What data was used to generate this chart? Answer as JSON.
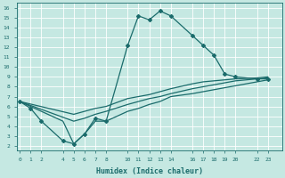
{
  "xlabel": "Humidex (Indice chaleur)",
  "ylabel": "",
  "bg_color": "#c5e8e2",
  "grid_color": "#ffffff",
  "line_color": "#1a6b6b",
  "xticks": [
    0,
    1,
    2,
    4,
    5,
    6,
    7,
    8,
    10,
    11,
    12,
    13,
    14,
    16,
    17,
    18,
    19,
    20,
    22,
    23
  ],
  "yticks": [
    2,
    3,
    4,
    5,
    6,
    7,
    8,
    9,
    10,
    11,
    12,
    13,
    14,
    15,
    16
  ],
  "xlim": [
    -0.3,
    24.3
  ],
  "ylim": [
    1.5,
    16.5
  ],
  "line1_x": [
    0,
    1,
    2,
    4,
    5,
    6,
    7,
    8,
    10,
    11,
    12,
    13,
    14,
    16,
    17,
    18,
    19,
    20,
    22,
    23
  ],
  "line1_y": [
    6.5,
    5.8,
    4.5,
    2.5,
    2.2,
    3.2,
    4.8,
    4.5,
    12.2,
    15.2,
    14.8,
    15.7,
    15.2,
    13.2,
    12.2,
    11.2,
    9.3,
    9.0,
    8.8,
    8.8
  ],
  "line2_x": [
    0,
    5,
    6,
    7,
    8,
    10,
    11,
    12,
    13,
    14,
    16,
    17,
    18,
    19,
    20,
    22,
    23
  ],
  "line2_y": [
    6.5,
    5.2,
    5.5,
    5.8,
    6.0,
    6.8,
    7.0,
    7.2,
    7.5,
    7.8,
    8.3,
    8.5,
    8.6,
    8.7,
    8.8,
    8.9,
    9.0
  ],
  "line3_x": [
    0,
    5,
    6,
    7,
    8,
    10,
    11,
    12,
    13,
    14,
    16,
    17,
    18,
    19,
    20,
    22,
    23
  ],
  "line3_y": [
    6.5,
    4.5,
    4.8,
    5.2,
    5.5,
    6.2,
    6.5,
    6.8,
    7.0,
    7.3,
    7.8,
    8.0,
    8.2,
    8.4,
    8.6,
    8.8,
    8.9
  ],
  "line4_x": [
    0,
    4,
    5,
    6,
    7,
    8,
    10,
    11,
    12,
    13,
    14,
    16,
    17,
    18,
    19,
    20,
    22,
    23
  ],
  "line4_y": [
    6.5,
    4.5,
    2.2,
    3.2,
    4.5,
    4.5,
    5.5,
    5.8,
    6.2,
    6.5,
    7.0,
    7.3,
    7.5,
    7.7,
    7.9,
    8.1,
    8.5,
    8.7
  ]
}
